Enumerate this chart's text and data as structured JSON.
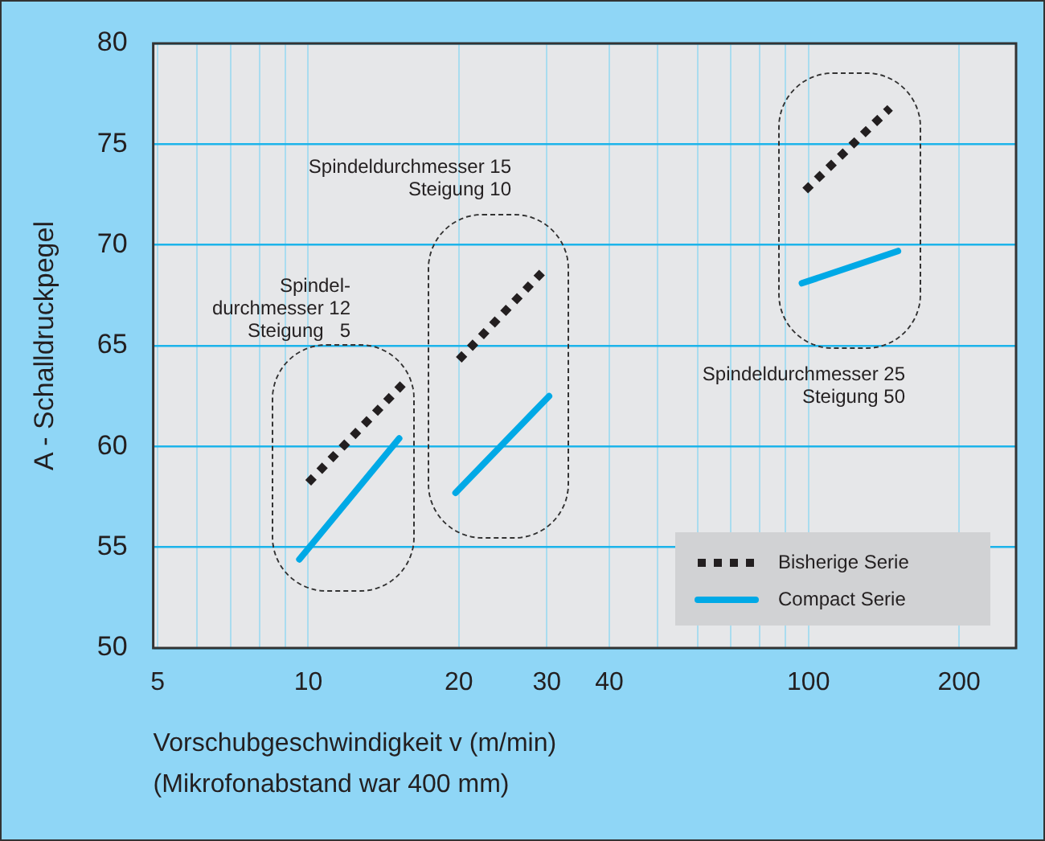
{
  "chart_data": {
    "type": "line",
    "xlabel": "Vorschubgeschwindigkeit v (m/min)\n(Mikrofonabstand war 400 mm)",
    "ylabel": "A - Schalldruckpegel",
    "log": "x",
    "xlim": [
      4.9,
      260
    ],
    "ylim": [
      50,
      80
    ],
    "xticks": [
      5,
      {
        "value": 6,
        "label": null
      },
      {
        "value": 7,
        "label": null
      },
      {
        "value": 8,
        "label": null
      },
      {
        "value": 9,
        "label": null
      },
      10,
      20,
      30,
      40,
      {
        "value": 50,
        "label": null
      },
      {
        "value": 60,
        "label": null
      },
      {
        "value": 70,
        "label": null
      },
      {
        "value": 80,
        "label": null
      },
      {
        "value": 90,
        "label": null
      },
      100,
      200
    ],
    "yticks": [
      50,
      55,
      60,
      65,
      70,
      75,
      80
    ],
    "grid": true,
    "legend": "bottom right",
    "series": [
      {
        "name": "Bisherige Serie",
        "color": "#231f20",
        "line_style": "dotted",
        "x": [
          10,
          15.6,
          null,
          20,
          29.5,
          null,
          98.5,
          145.6
        ],
        "values": [
          58.2,
          63.2,
          null,
          64.3,
          68.7,
          null,
          72.7,
          76.8
        ]
      },
      {
        "name": "Compact Serie",
        "color": "#00a9e6",
        "line_style": "solid",
        "x": [
          9.6,
          15.2,
          null,
          19.7,
          30.3,
          null,
          97,
          151
        ],
        "values": [
          54.4,
          60.4,
          null,
          57.7,
          62.5,
          null,
          68.1,
          69.7
        ]
      }
    ],
    "annotations": [
      "Spindel-\ndurchmesser 12\nSteigung   5",
      "Spindeldurchmesser 15\nSteigung 10",
      "Spindeldurchmesser 25\nSteigung 50"
    ]
  }
}
